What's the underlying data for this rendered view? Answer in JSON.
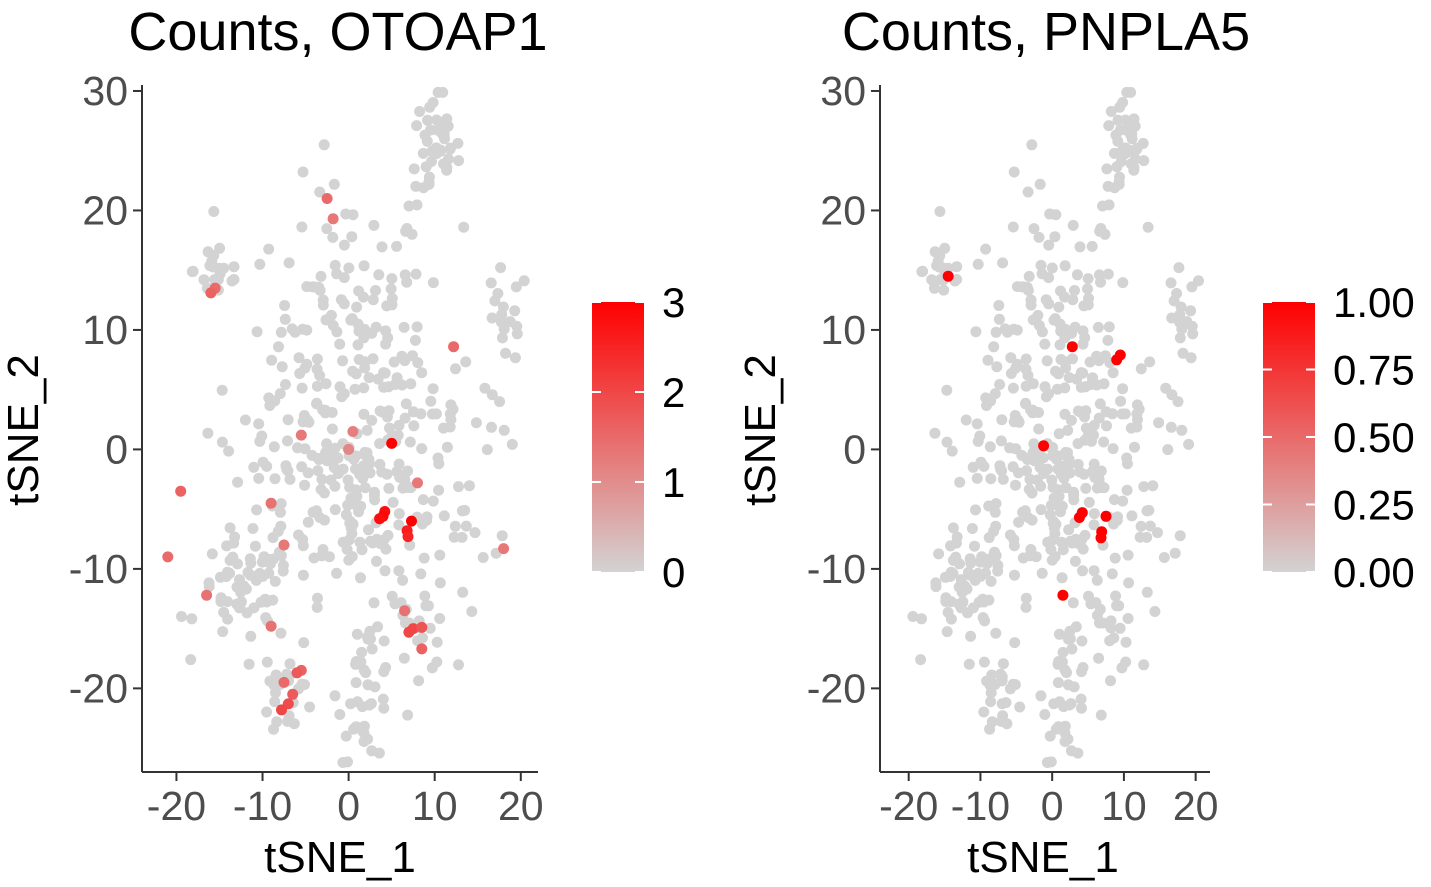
{
  "chart_data": [
    {
      "type": "scatter",
      "title": "Counts, OTOAP1",
      "xlabel": "tSNE_1",
      "ylabel": "tSNE_2",
      "xlim": [
        -24,
        22
      ],
      "ylim": [
        -27,
        30.5
      ],
      "xticks": [
        -20,
        -10,
        0,
        10,
        20
      ],
      "yticks": [
        -20,
        -10,
        0,
        10,
        20,
        30
      ],
      "colorbar": {
        "low_color": "#d3d3d3",
        "high_color": "#ff0000",
        "min": 0,
        "max": 3,
        "ticks": [
          "0",
          "1",
          "2",
          "3"
        ]
      },
      "highlighted_points": [
        {
          "x": -2.5,
          "y": 21.0,
          "value": 1.5
        },
        {
          "x": -1.8,
          "y": 19.3,
          "value": 1.3
        },
        {
          "x": -15.5,
          "y": 13.5,
          "value": 1.5
        },
        {
          "x": -16.0,
          "y": 13.1,
          "value": 1.6
        },
        {
          "x": 12.2,
          "y": 8.6,
          "value": 1.5
        },
        {
          "x": -5.5,
          "y": 1.2,
          "value": 1.3
        },
        {
          "x": 0.5,
          "y": 1.5,
          "value": 1.2
        },
        {
          "x": 0.0,
          "y": 0.0,
          "value": 1.1
        },
        {
          "x": 5.0,
          "y": 0.5,
          "value": 3.0
        },
        {
          "x": 8.0,
          "y": -2.8,
          "value": 1.3
        },
        {
          "x": -9.0,
          "y": -4.5,
          "value": 1.4
        },
        {
          "x": -19.5,
          "y": -3.5,
          "value": 1.6
        },
        {
          "x": 4.2,
          "y": -5.2,
          "value": 2.8
        },
        {
          "x": 4.0,
          "y": -5.6,
          "value": 2.9
        },
        {
          "x": 3.6,
          "y": -5.8,
          "value": 2.8
        },
        {
          "x": 7.3,
          "y": -6.0,
          "value": 3.0
        },
        {
          "x": 6.8,
          "y": -6.8,
          "value": 2.6
        },
        {
          "x": 6.9,
          "y": -7.3,
          "value": 2.5
        },
        {
          "x": -7.5,
          "y": -8.0,
          "value": 1.3
        },
        {
          "x": -21.0,
          "y": -9.0,
          "value": 1.5
        },
        {
          "x": 18.0,
          "y": -8.3,
          "value": 1.3
        },
        {
          "x": -16.5,
          "y": -12.2,
          "value": 1.4
        },
        {
          "x": 6.5,
          "y": -13.5,
          "value": 1.4
        },
        {
          "x": -9.0,
          "y": -14.8,
          "value": 1.4
        },
        {
          "x": 7.0,
          "y": -15.3,
          "value": 2.0
        },
        {
          "x": 7.5,
          "y": -15.0,
          "value": 2.0
        },
        {
          "x": 8.5,
          "y": -14.9,
          "value": 1.8
        },
        {
          "x": 8.5,
          "y": -16.7,
          "value": 1.6
        },
        {
          "x": -5.5,
          "y": -18.5,
          "value": 1.6
        },
        {
          "x": -6.0,
          "y": -18.7,
          "value": 1.7
        },
        {
          "x": -7.5,
          "y": -19.5,
          "value": 1.5
        },
        {
          "x": -6.5,
          "y": -20.5,
          "value": 1.7
        },
        {
          "x": -7.0,
          "y": -21.3,
          "value": 1.9
        },
        {
          "x": -7.8,
          "y": -21.8,
          "value": 2.0
        }
      ]
    },
    {
      "type": "scatter",
      "title": "Counts, PNPLA5",
      "xlabel": "tSNE_1",
      "ylabel": "tSNE_2",
      "xlim": [
        -24,
        22
      ],
      "ylim": [
        -27,
        30.5
      ],
      "xticks": [
        -20,
        -10,
        0,
        10,
        20
      ],
      "yticks": [
        -20,
        -10,
        0,
        10,
        20,
        30
      ],
      "colorbar": {
        "low_color": "#d3d3d3",
        "high_color": "#ff0000",
        "min": 0,
        "max": 1,
        "ticks": [
          "0.00",
          "0.25",
          "0.50",
          "0.75",
          "1.00"
        ]
      },
      "highlighted_points": [
        {
          "x": -14.5,
          "y": 14.5,
          "value": 1.0
        },
        {
          "x": 2.8,
          "y": 8.6,
          "value": 1.0
        },
        {
          "x": 9.0,
          "y": 7.5,
          "value": 1.0
        },
        {
          "x": 9.5,
          "y": 7.9,
          "value": 1.0
        },
        {
          "x": -1.2,
          "y": 0.3,
          "value": 1.0
        },
        {
          "x": 4.2,
          "y": -5.3,
          "value": 1.0
        },
        {
          "x": 3.8,
          "y": -5.7,
          "value": 1.0
        },
        {
          "x": 7.5,
          "y": -5.6,
          "value": 1.0
        },
        {
          "x": 6.9,
          "y": -6.9,
          "value": 1.0
        },
        {
          "x": 6.8,
          "y": -7.4,
          "value": 1.0
        },
        {
          "x": 1.5,
          "y": -12.2,
          "value": 1.0
        }
      ]
    }
  ]
}
